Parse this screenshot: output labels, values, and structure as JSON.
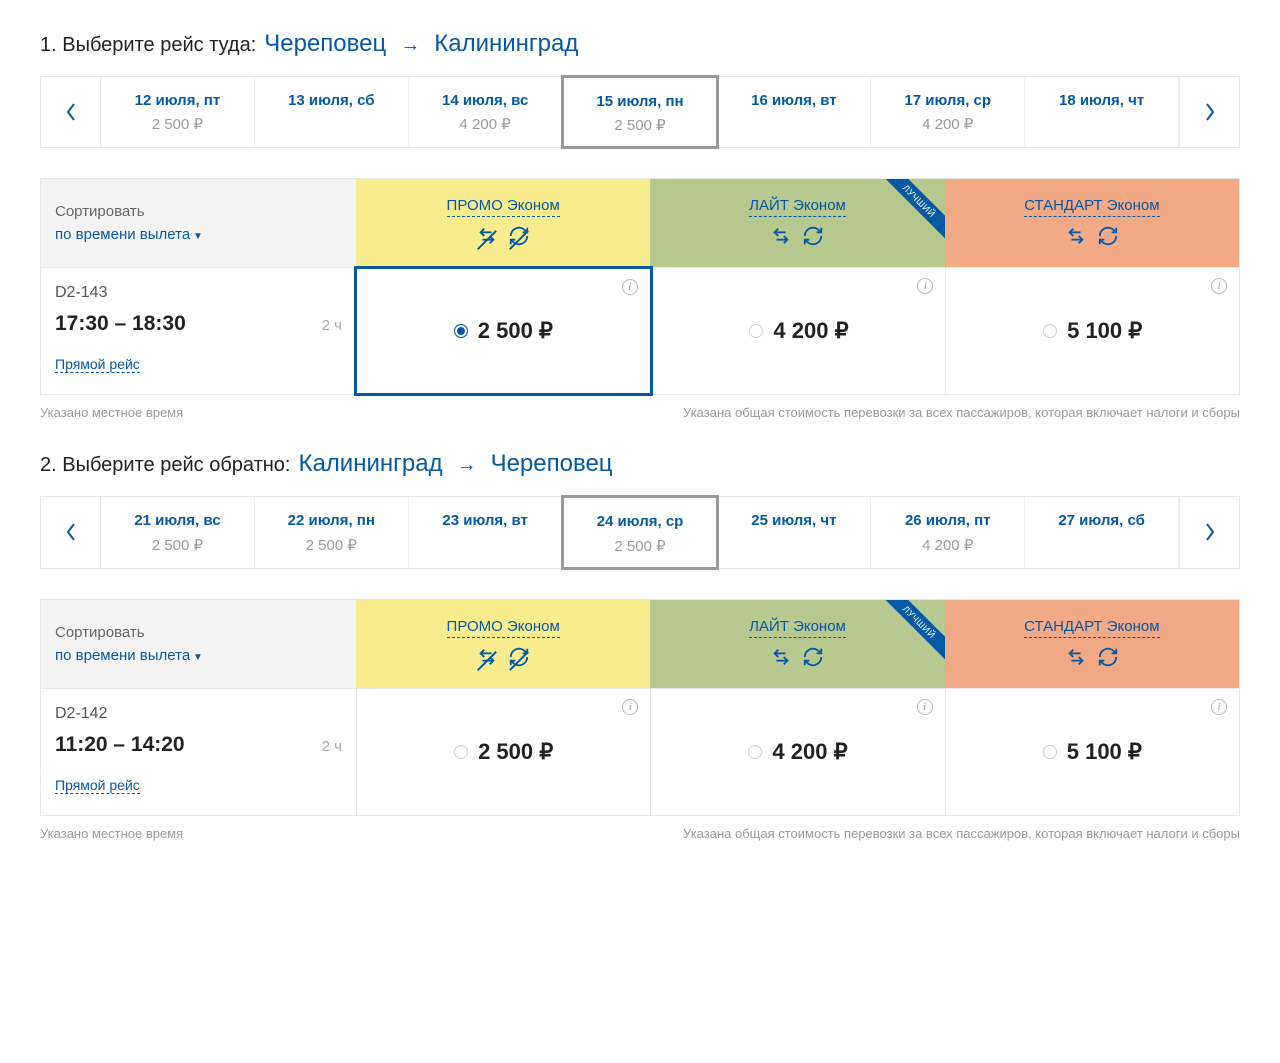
{
  "colors": {
    "accent": "#0659a5",
    "promo_bg": "#f7ed8e",
    "lite_bg": "#b7c98f",
    "std_bg": "#f2a985",
    "muted": "#9a9a9a",
    "border": "#e8e8e8",
    "sort_bg": "#f4f4f4",
    "selected_date_border": "#9a9a9a",
    "selected_price_border": "#0659a5"
  },
  "currency_symbol": "₽",
  "outbound": {
    "step_label": "1. Выберите рейс туда:",
    "from": "Череповец",
    "to": "Калининград",
    "dates": [
      {
        "label": "12 июля, пт",
        "price": "2 500 ₽",
        "selected": false
      },
      {
        "label": "13 июля, сб",
        "price": "",
        "selected": false
      },
      {
        "label": "14 июля, вс",
        "price": "4 200 ₽",
        "selected": false
      },
      {
        "label": "15 июля, пн",
        "price": "2 500 ₽",
        "selected": true
      },
      {
        "label": "16 июля, вт",
        "price": "",
        "selected": false
      },
      {
        "label": "17 июля, ср",
        "price": "4 200 ₽",
        "selected": false
      },
      {
        "label": "18 июля, чт",
        "price": "",
        "selected": false
      }
    ],
    "sort": {
      "label": "Сортировать",
      "by": "по времени вылета"
    },
    "fare_classes": [
      {
        "key": "promo",
        "title": "ПРОМО Эконом",
        "best": false,
        "icons": [
          "return-strike",
          "refresh-strike"
        ]
      },
      {
        "key": "lite",
        "title": "ЛАЙТ Эконом",
        "best": true,
        "icons": [
          "return",
          "refresh"
        ]
      },
      {
        "key": "std",
        "title": "СТАНДАРТ Эконом",
        "best": false,
        "icons": [
          "return",
          "refresh"
        ]
      }
    ],
    "best_label": "ЛУЧШИЙ",
    "flight": {
      "number": "D2-143",
      "time": "17:30 – 18:30",
      "duration": "2 ч",
      "direct_label": "Прямой рейс",
      "prices": [
        {
          "price": "2 500 ₽",
          "selected": true
        },
        {
          "price": "4 200 ₽",
          "selected": false
        },
        {
          "price": "5 100 ₽",
          "selected": false
        }
      ]
    },
    "footnote_left": "Указано местное время",
    "footnote_right": "Указана общая стоимость перевозки за всех пассажиров, которая включает налоги и сборы"
  },
  "return": {
    "step_label": "2. Выберите рейс обратно:",
    "from": "Калининград",
    "to": "Череповец",
    "dates": [
      {
        "label": "21 июля, вс",
        "price": "2 500 ₽",
        "selected": false
      },
      {
        "label": "22 июля, пн",
        "price": "2 500 ₽",
        "selected": false
      },
      {
        "label": "23 июля, вт",
        "price": "",
        "selected": false
      },
      {
        "label": "24 июля, ср",
        "price": "2 500 ₽",
        "selected": true
      },
      {
        "label": "25 июля, чт",
        "price": "",
        "selected": false
      },
      {
        "label": "26 июля, пт",
        "price": "4 200 ₽",
        "selected": false
      },
      {
        "label": "27 июля, сб",
        "price": "",
        "selected": false
      }
    ],
    "sort": {
      "label": "Сортировать",
      "by": "по времени вылета"
    },
    "fare_classes": [
      {
        "key": "promo",
        "title": "ПРОМО Эконом",
        "best": false,
        "icons": [
          "return-strike",
          "refresh-strike"
        ]
      },
      {
        "key": "lite",
        "title": "ЛАЙТ Эконом",
        "best": true,
        "icons": [
          "return",
          "refresh"
        ]
      },
      {
        "key": "std",
        "title": "СТАНДАРТ Эконом",
        "best": false,
        "icons": [
          "return",
          "refresh"
        ]
      }
    ],
    "best_label": "ЛУЧШИЙ",
    "flight": {
      "number": "D2-142",
      "time": "11:20 – 14:20",
      "duration": "2 ч",
      "direct_label": "Прямой рейс",
      "prices": [
        {
          "price": "2 500 ₽",
          "selected": false
        },
        {
          "price": "4 200 ₽",
          "selected": false
        },
        {
          "price": "5 100 ₽",
          "selected": false
        }
      ]
    },
    "footnote_left": "Указано местное время",
    "footnote_right": "Указана общая стоимость перевозки за всех пассажиров, которая включает налоги и сборы"
  }
}
